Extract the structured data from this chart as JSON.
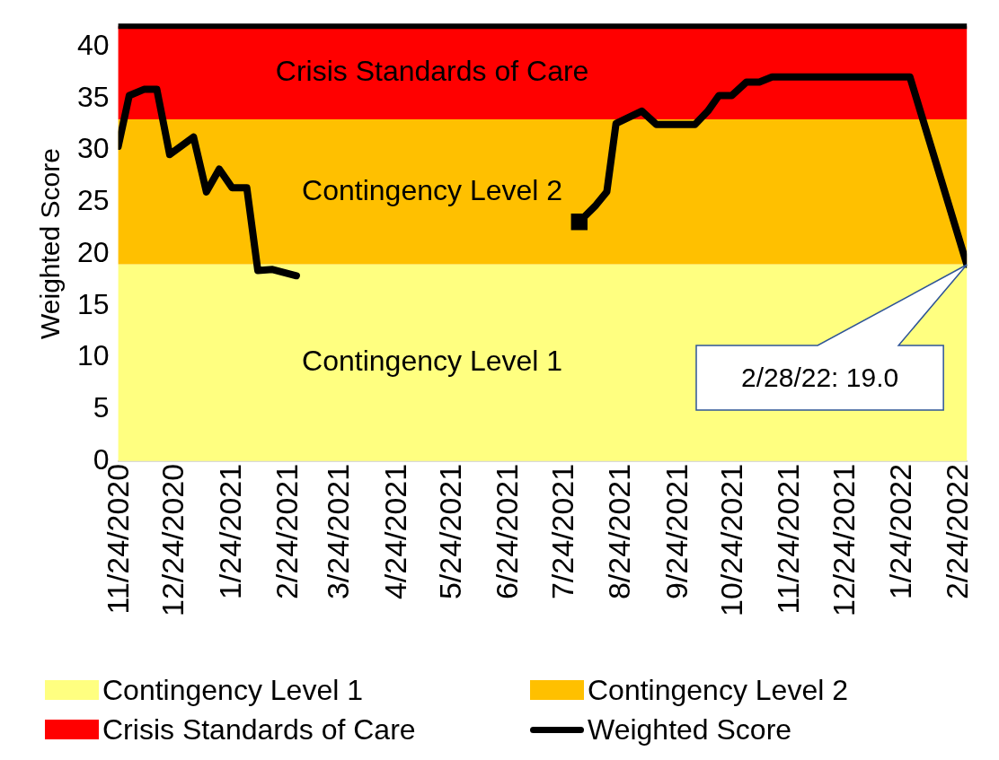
{
  "chart_data": {
    "type": "line",
    "ylabel": "Weighted Score",
    "xlim": [
      "2020-11-23",
      "2022-02-28"
    ],
    "ylim": [
      0,
      42
    ],
    "yticks": [
      0,
      5,
      10,
      15,
      20,
      25,
      30,
      35,
      40
    ],
    "xticks": [
      {
        "value": "2020-11-24",
        "label": "11/24/2020"
      },
      {
        "value": "2020-12-24",
        "label": "12/24/2020"
      },
      {
        "value": "2021-01-24",
        "label": "1/24/2021"
      },
      {
        "value": "2021-02-24",
        "label": "2/24/2021"
      },
      {
        "value": "2021-03-24",
        "label": "3/24/2021"
      },
      {
        "value": "2021-04-24",
        "label": "4/24/2021"
      },
      {
        "value": "2021-05-24",
        "label": "5/24/2021"
      },
      {
        "value": "2021-06-24",
        "label": "6/24/2021"
      },
      {
        "value": "2021-07-24",
        "label": "7/24/2021"
      },
      {
        "value": "2021-08-24",
        "label": "8/24/2021"
      },
      {
        "value": "2021-09-24",
        "label": "9/24/2021"
      },
      {
        "value": "2021-10-24",
        "label": "10/24/2021"
      },
      {
        "value": "2021-11-24",
        "label": "11/24/2021"
      },
      {
        "value": "2021-12-24",
        "label": "12/24/2021"
      },
      {
        "value": "2022-01-24",
        "label": "1/24/2022"
      },
      {
        "value": "2022-02-24",
        "label": "2/24/2022"
      }
    ],
    "bands": [
      {
        "axis": "y",
        "from": 0,
        "to": 19,
        "label": "Contingency Level 1",
        "color": "#ffff80"
      },
      {
        "axis": "y",
        "from": 19,
        "to": 33,
        "label": "Contingency Level 2",
        "color": "#ffc000"
      },
      {
        "axis": "y",
        "from": 33,
        "to": 42,
        "label": "Crisis Standards of Care",
        "color": "#ff0000"
      }
    ],
    "series": [
      {
        "name": "Weighted Score",
        "color": "#000000",
        "marker": "none",
        "x": [
          "2020-11-23",
          "2020-11-29",
          "2020-12-07",
          "2020-12-14",
          "2020-12-21",
          "2021-01-03",
          "2021-01-10",
          "2021-01-17",
          "2021-01-24",
          "2021-02-01",
          "2021-02-07",
          "2021-02-15",
          "2021-02-28",
          "2021-05-01",
          "2021-08-01",
          "2021-08-10",
          "2021-08-16",
          "2021-08-21",
          "2021-09-04",
          "2021-09-12",
          "2021-10-03",
          "2021-10-10",
          "2021-10-16",
          "2021-10-23",
          "2021-10-31",
          "2021-11-07",
          "2021-11-14",
          "2022-01-28",
          "2022-02-09",
          "2022-02-28"
        ],
        "values": [
          30.4,
          35.3,
          35.9,
          35.9,
          29.6,
          31.3,
          26.0,
          28.2,
          26.4,
          26.4,
          18.4,
          18.5,
          17.9,
          null,
          23.1,
          24.7,
          26.0,
          32.6,
          33.8,
          32.5,
          32.5,
          33.8,
          35.3,
          35.3,
          36.6,
          36.6,
          37.1,
          37.1,
          30.1,
          19.0
        ]
      },
      {
        "type": "scatter",
        "color": "#000000",
        "marker": "square",
        "x": [
          "2021-08-01"
        ],
        "values": [
          23.1
        ]
      }
    ],
    "ref_lines": [
      {
        "axis": "y",
        "value": 42,
        "color": "#000000"
      }
    ],
    "annotations": [
      "2/28/22: 19.0"
    ],
    "legend": "bottom"
  }
}
